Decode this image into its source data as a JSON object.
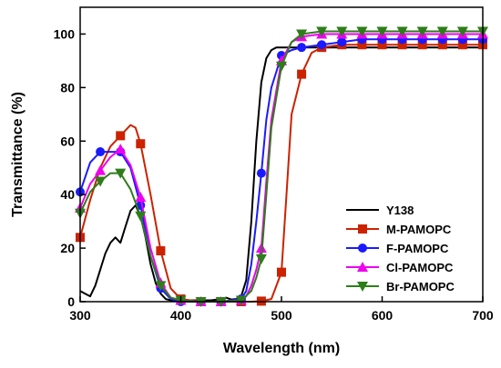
{
  "chart_data": {
    "type": "line",
    "title": "",
    "xlabel": "Wavelength (nm)",
    "ylabel": "Transmittance (%)",
    "xlim": [
      300,
      700
    ],
    "ylim": [
      0,
      110
    ],
    "xticks": [
      300,
      400,
      500,
      600,
      700
    ],
    "yticks": [
      0,
      20,
      40,
      60,
      80,
      100
    ],
    "grid": false,
    "legend_position": "bottom-right",
    "series": [
      {
        "name": "Y138",
        "color": "#000000",
        "marker": "none",
        "x": [
          300,
          305,
          310,
          315,
          320,
          325,
          330,
          335,
          340,
          345,
          350,
          355,
          360,
          365,
          370,
          375,
          380,
          385,
          390,
          395,
          400,
          410,
          420,
          430,
          440,
          445,
          450,
          455,
          460,
          465,
          470,
          475,
          480,
          485,
          490,
          495,
          500,
          510,
          520,
          540,
          560,
          580,
          600,
          620,
          640,
          660,
          680,
          700
        ],
        "y": [
          4,
          3,
          2,
          6,
          12,
          18,
          22,
          24,
          22,
          28,
          34,
          36,
          32,
          24,
          14,
          7,
          3,
          1,
          0.5,
          0.3,
          0.2,
          0.5,
          0.5,
          0.5,
          1,
          1.5,
          0.8,
          1,
          2,
          8,
          30,
          60,
          82,
          91,
          94,
          95,
          95,
          95,
          95,
          95,
          95,
          95,
          95,
          95,
          95,
          95,
          95,
          95
        ]
      },
      {
        "name": "M-PAMOPC",
        "color": "#cc2200",
        "marker": "square",
        "x": [
          300,
          310,
          320,
          330,
          340,
          350,
          355,
          360,
          370,
          380,
          390,
          400,
          420,
          440,
          460,
          470,
          480,
          490,
          500,
          505,
          510,
          520,
          530,
          540,
          560,
          580,
          600,
          620,
          640,
          660,
          680,
          700
        ],
        "y": [
          24,
          38,
          50,
          58,
          62,
          66,
          65,
          59,
          40,
          19,
          5,
          1,
          0,
          0,
          0,
          0,
          0.2,
          1,
          11,
          40,
          70,
          85,
          93,
          95,
          96,
          96,
          96,
          96,
          96,
          96,
          96,
          96
        ],
        "marker_x": [
          300,
          340,
          360,
          380,
          400,
          420,
          440,
          460,
          480,
          500,
          520,
          540,
          560,
          580,
          600,
          620,
          640,
          660,
          680,
          700
        ],
        "marker_y": [
          24,
          62,
          59,
          19,
          1,
          0,
          0,
          0,
          0.2,
          11,
          85,
          95,
          96,
          96,
          96,
          96,
          96,
          96,
          96,
          96
        ]
      },
      {
        "name": "F-PAMOPC",
        "color": "#1a1aff",
        "marker": "circle",
        "x": [
          300,
          310,
          320,
          330,
          340,
          350,
          360,
          370,
          380,
          390,
          400,
          420,
          440,
          460,
          465,
          470,
          475,
          480,
          485,
          490,
          500,
          510,
          520,
          540,
          560,
          580,
          600,
          620,
          640,
          660,
          680,
          700
        ],
        "y": [
          41,
          52,
          56,
          56,
          56,
          50,
          36,
          17,
          5,
          1,
          0,
          0,
          0,
          1,
          4,
          14,
          30,
          48,
          68,
          80,
          92,
          94,
          95,
          96,
          97,
          98,
          98,
          98,
          98,
          98,
          98,
          98
        ],
        "marker_x": [
          300,
          320,
          340,
          360,
          380,
          400,
          420,
          440,
          460,
          480,
          500,
          520,
          540,
          560,
          580,
          600,
          620,
          640,
          660,
          680,
          700
        ],
        "marker_y": [
          41,
          56,
          56,
          36,
          5,
          0,
          0,
          0,
          1,
          48,
          92,
          95,
          96,
          97,
          98,
          98,
          98,
          98,
          98,
          98,
          98
        ]
      },
      {
        "name": "Cl-PAMOPC",
        "color": "#ee00ee",
        "marker": "triangle-up",
        "x": [
          300,
          310,
          320,
          330,
          340,
          350,
          360,
          370,
          380,
          390,
          400,
          420,
          440,
          460,
          465,
          470,
          475,
          480,
          485,
          490,
          500,
          510,
          520,
          540,
          560,
          580,
          600,
          620,
          640,
          660,
          680,
          700
        ],
        "y": [
          35,
          44,
          49,
          54,
          57,
          51,
          39,
          20,
          7,
          1.5,
          0.5,
          0,
          0,
          0.5,
          2,
          6,
          12,
          20,
          45,
          68,
          90,
          97,
          99,
          100,
          100,
          100,
          100,
          100,
          100,
          100,
          100,
          100
        ],
        "marker_x": [
          300,
          320,
          340,
          360,
          380,
          400,
          420,
          440,
          460,
          480,
          500,
          520,
          540,
          560,
          580,
          600,
          620,
          640,
          660,
          680,
          700
        ],
        "marker_y": [
          35,
          49,
          57,
          39,
          7,
          0.5,
          0,
          0,
          0.5,
          20,
          90,
          99,
          100,
          100,
          100,
          100,
          100,
          100,
          100,
          100,
          100
        ]
      },
      {
        "name": "Br-PAMOPC",
        "color": "#2e7d1a",
        "marker": "triangle-down",
        "x": [
          300,
          310,
          320,
          330,
          340,
          350,
          360,
          370,
          380,
          390,
          400,
          420,
          440,
          460,
          470,
          475,
          480,
          485,
          490,
          500,
          510,
          520,
          540,
          560,
          580,
          600,
          620,
          640,
          660,
          680,
          700
        ],
        "y": [
          33,
          41,
          45,
          48,
          48,
          42,
          32,
          17,
          6,
          1.5,
          0.5,
          0,
          0,
          0.5,
          4,
          9,
          16,
          40,
          65,
          88,
          97,
          100,
          101,
          101,
          101,
          101,
          101,
          101,
          101,
          101,
          101
        ],
        "marker_x": [
          300,
          320,
          340,
          360,
          380,
          400,
          420,
          440,
          460,
          480,
          500,
          520,
          540,
          560,
          580,
          600,
          620,
          640,
          660,
          680,
          700
        ],
        "marker_y": [
          33,
          45,
          48,
          32,
          6,
          0.5,
          0,
          0,
          0.5,
          16,
          88,
          100,
          101,
          101,
          101,
          101,
          101,
          101,
          101,
          101,
          101
        ]
      }
    ]
  }
}
